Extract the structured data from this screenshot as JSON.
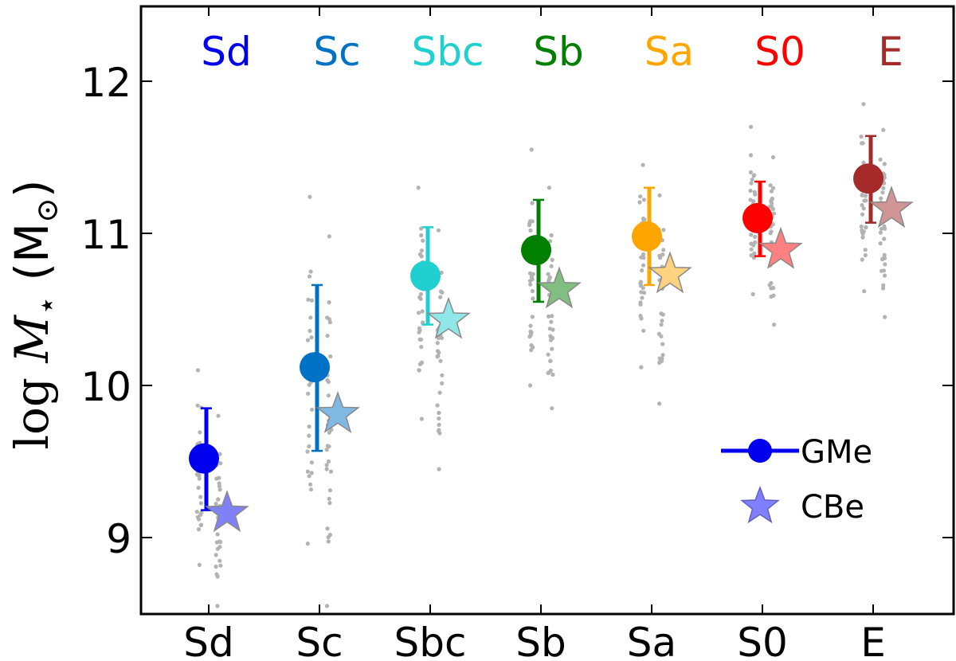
{
  "chart_data": {
    "type": "scatter",
    "title": "",
    "xlabel": "",
    "ylabel": "log M⋆ (M☉)",
    "ylabel_parts": {
      "prefix": "log ",
      "symbol": "M",
      "subscript": "⋆",
      "unit_open": " (M",
      "unit_sub": "⊙",
      "unit_close": ")"
    },
    "ylim": [
      8.5,
      12.5
    ],
    "yticks": [
      9,
      10,
      11,
      12
    ],
    "grid": false,
    "legend_position": "lower-right",
    "categories": [
      "Sd",
      "Sc",
      "Sbc",
      "Sb",
      "Sa",
      "S0",
      "E"
    ],
    "category_colors": [
      "#0000ee",
      "#0072c6",
      "#20cfcf",
      "#007f00",
      "#ffa500",
      "#ff0000",
      "#a52a2a"
    ],
    "series": [
      {
        "name": "GMe",
        "marker": "circle",
        "values": [
          9.52,
          10.12,
          10.72,
          10.89,
          10.98,
          11.1,
          11.36
        ],
        "err_low": [
          9.18,
          9.57,
          10.4,
          10.55,
          10.66,
          10.85,
          11.07
        ],
        "err_high": [
          9.85,
          10.66,
          11.04,
          11.22,
          11.3,
          11.34,
          11.64
        ]
      },
      {
        "name": "CBe",
        "marker": "star",
        "values": [
          9.16,
          9.81,
          10.43,
          10.63,
          10.73,
          10.89,
          11.16
        ]
      }
    ],
    "scatter_ranges": {
      "gme": [
        [
          8.82,
          10.1
        ],
        [
          8.96,
          11.24
        ],
        [
          9.78,
          11.3
        ],
        [
          10.0,
          11.55
        ],
        [
          10.12,
          11.45
        ],
        [
          10.6,
          11.7
        ],
        [
          10.62,
          11.85
        ]
      ],
      "cbe": [
        [
          8.55,
          9.8
        ],
        [
          8.55,
          10.98
        ],
        [
          9.45,
          11.02
        ],
        [
          9.85,
          11.3
        ],
        [
          9.88,
          11.25
        ],
        [
          10.4,
          11.5
        ],
        [
          10.45,
          11.68
        ]
      ]
    }
  },
  "legend": {
    "gme_label": "GMe",
    "cbe_label": "CBe"
  }
}
